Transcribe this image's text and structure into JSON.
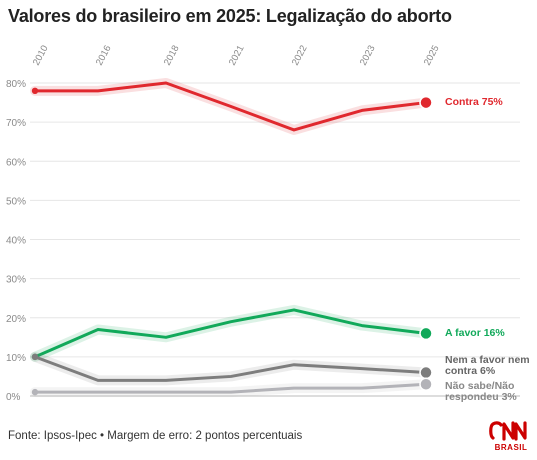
{
  "title": "Valores do brasileiro em 2025: Legalização do aborto",
  "footer": "Fonte: Ipsos-Ipec • Margem de erro: 2 pontos percentuais",
  "logo": {
    "brand": "CNN",
    "sub": "BRASIL",
    "color": "#cc0000"
  },
  "chart_data": {
    "type": "line",
    "x": [
      "2010",
      "2016",
      "2018",
      "2021",
      "2022",
      "2023",
      "2025"
    ],
    "ylim": [
      0,
      80
    ],
    "yticks": [
      0,
      10,
      20,
      30,
      40,
      50,
      60,
      70,
      80
    ],
    "ytick_labels": [
      "0%",
      "10%",
      "20%",
      "30%",
      "40%",
      "50%",
      "60%",
      "70%",
      "80%"
    ],
    "grid": true,
    "series": [
      {
        "name": "Contra",
        "label_lines": [
          "Contra 75%"
        ],
        "values": [
          78,
          78,
          80,
          74,
          68,
          73,
          75
        ],
        "color": "#e0282e",
        "label_color": "#e0282e"
      },
      {
        "name": "A favor",
        "label_lines": [
          "A favor 16%"
        ],
        "values": [
          10,
          17,
          15,
          19,
          22,
          18,
          16
        ],
        "color": "#11a95a",
        "label_color": "#11a95a"
      },
      {
        "name": "Nem a favor nem contra",
        "label_lines": [
          "Nem a favor nem",
          "contra 6%"
        ],
        "values": [
          10,
          4,
          4,
          5,
          8,
          7,
          6
        ],
        "color": "#7d7d7d",
        "label_color": "#666666"
      },
      {
        "name": "Não sabe/Não respondeu",
        "label_lines": [
          "Não sabe/Não",
          "respondeu 3%"
        ],
        "values": [
          1,
          1,
          1,
          1,
          2,
          2,
          3
        ],
        "color": "#b3b3b8",
        "label_color": "#888888"
      }
    ]
  }
}
